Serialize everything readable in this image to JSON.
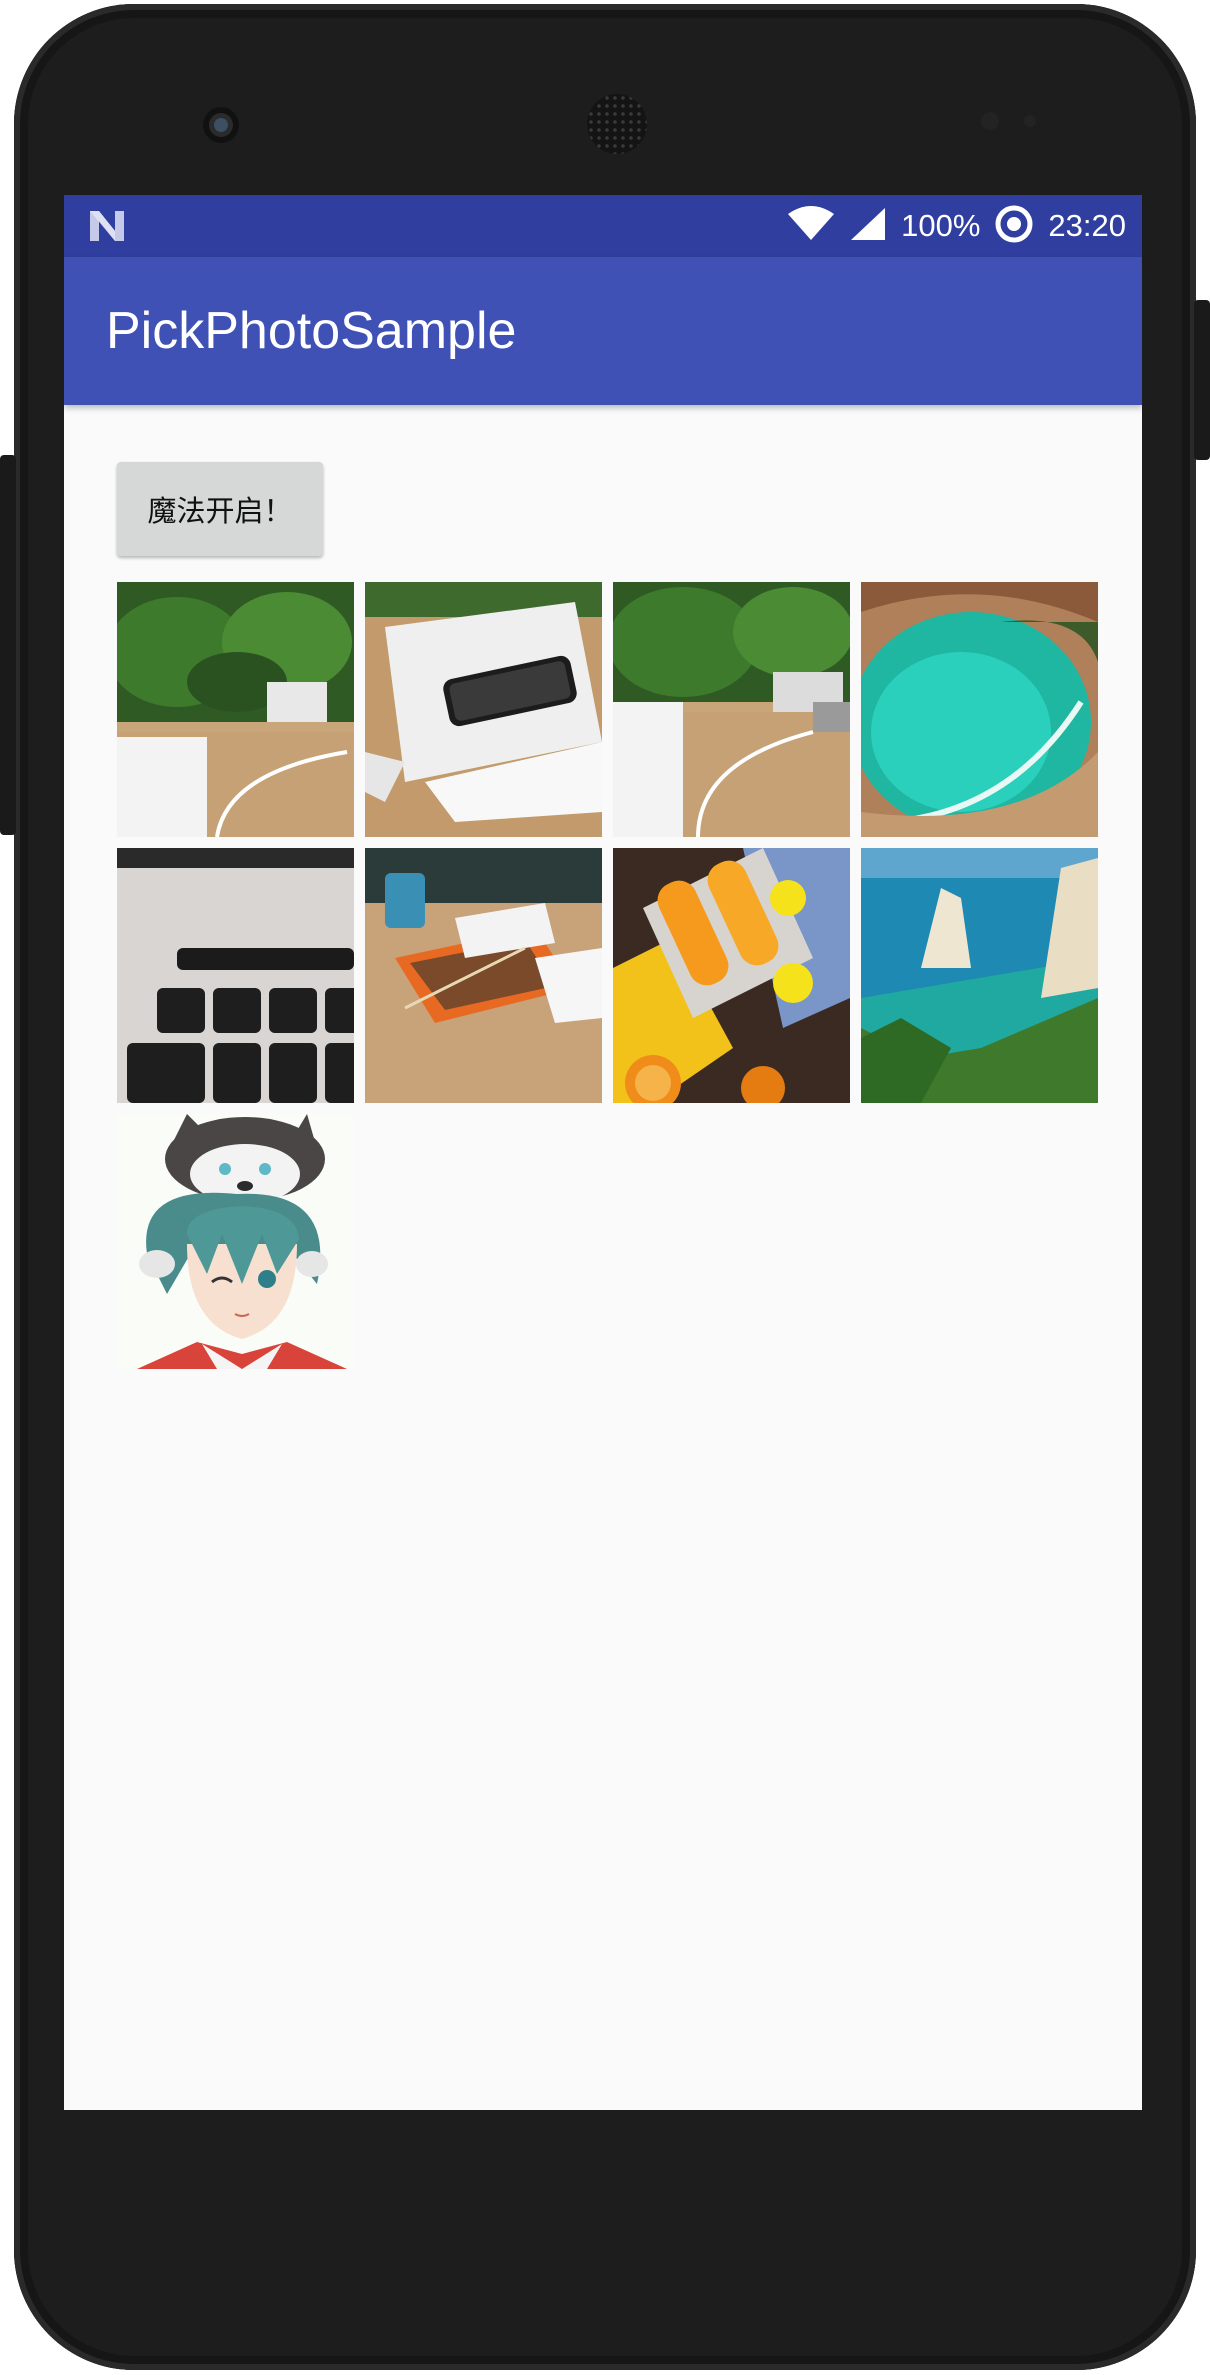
{
  "status_bar": {
    "battery_percent": "100%",
    "time": "23:20",
    "icons": [
      "n-notification-icon",
      "wifi-icon",
      "cell-signal-icon",
      "battery-saver-ring-icon"
    ]
  },
  "app_bar": {
    "title": "PickPhotoSample"
  },
  "main": {
    "magic_button_label": "魔法开启！"
  },
  "gallery": {
    "photos": [
      "plants-desk-photo",
      "phone-on-notebook-photo",
      "plants-cable-photo",
      "turquoise-lagoon-photo",
      "laptop-keyboard-photo",
      "lunch-box-photo",
      "orange-popsicles-photo",
      "sea-cliffs-photo",
      "anime-boy-with-husky-photo"
    ]
  },
  "colors": {
    "status_bar": "#303f9f",
    "app_bar": "#3f51b5",
    "background": "#fafafa",
    "button": "#d6d7d7"
  }
}
